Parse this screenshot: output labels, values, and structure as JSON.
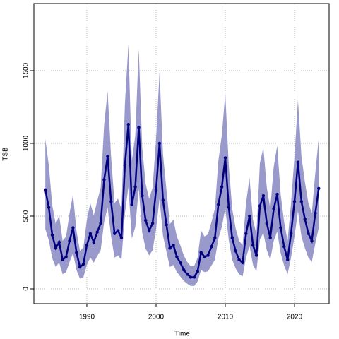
{
  "chart_data": {
    "type": "line",
    "xlabel": "Time",
    "ylabel": "TSB",
    "x": [
      1984.0,
      1984.5,
      1985.0,
      1985.5,
      1986.0,
      1986.5,
      1987.0,
      1987.5,
      1988.0,
      1988.5,
      1989.0,
      1989.5,
      1990.0,
      1990.5,
      1991.0,
      1991.5,
      1992.0,
      1992.5,
      1993.0,
      1993.5,
      1994.0,
      1994.5,
      1995.0,
      1995.5,
      1996.0,
      1996.5,
      1997.0,
      1997.5,
      1998.0,
      1998.5,
      1999.0,
      1999.5,
      2000.0,
      2000.5,
      2001.0,
      2001.5,
      2002.0,
      2002.5,
      2003.0,
      2003.5,
      2004.0,
      2004.5,
      2005.0,
      2005.5,
      2006.0,
      2006.5,
      2007.0,
      2007.5,
      2008.0,
      2008.5,
      2009.0,
      2009.5,
      2010.0,
      2010.5,
      2011.0,
      2011.5,
      2012.0,
      2012.5,
      2013.0,
      2013.5,
      2014.0,
      2014.5,
      2015.0,
      2015.5,
      2016.0,
      2016.5,
      2017.0,
      2017.5,
      2018.0,
      2018.5,
      2019.0,
      2019.5,
      2020.0,
      2020.5,
      2021.0,
      2021.5,
      2022.0,
      2022.5,
      2023.0,
      2023.5
    ],
    "values": [
      680,
      560,
      370,
      280,
      320,
      200,
      220,
      330,
      420,
      250,
      150,
      170,
      300,
      380,
      320,
      390,
      450,
      750,
      910,
      600,
      380,
      400,
      350,
      850,
      1130,
      580,
      700,
      1110,
      640,
      470,
      400,
      450,
      680,
      1000,
      610,
      440,
      280,
      300,
      220,
      180,
      130,
      100,
      80,
      80,
      120,
      250,
      220,
      230,
      290,
      350,
      580,
      700,
      900,
      560,
      350,
      260,
      200,
      180,
      380,
      500,
      300,
      230,
      570,
      640,
      450,
      350,
      550,
      650,
      420,
      290,
      200,
      380,
      600,
      870,
      600,
      480,
      380,
      330,
      520,
      690
    ],
    "lower": [
      410,
      335,
      210,
      150,
      180,
      100,
      115,
      185,
      245,
      130,
      70,
      80,
      165,
      215,
      180,
      225,
      265,
      460,
      560,
      360,
      215,
      230,
      200,
      520,
      700,
      345,
      425,
      690,
      385,
      275,
      230,
      265,
      410,
      620,
      365,
      255,
      150,
      165,
      115,
      85,
      55,
      35,
      20,
      20,
      50,
      130,
      115,
      120,
      160,
      200,
      345,
      425,
      555,
      335,
      200,
      140,
      100,
      85,
      215,
      295,
      165,
      120,
      340,
      385,
      265,
      200,
      330,
      395,
      245,
      160,
      100,
      215,
      360,
      535,
      360,
      280,
      215,
      185,
      310,
      420
    ],
    "upper": [
      1030,
      850,
      575,
      445,
      505,
      330,
      360,
      520,
      650,
      400,
      260,
      285,
      475,
      590,
      505,
      605,
      695,
      1130,
      1360,
      910,
      590,
      620,
      550,
      1270,
      1680,
      880,
      1055,
      1650,
      970,
      720,
      620,
      695,
      1030,
      1490,
      925,
      680,
      445,
      475,
      360,
      300,
      230,
      185,
      155,
      155,
      215,
      400,
      360,
      375,
      460,
      550,
      880,
      1055,
      1345,
      850,
      550,
      415,
      330,
      300,
      590,
      765,
      475,
      375,
      865,
      970,
      695,
      550,
      840,
      985,
      650,
      460,
      330,
      590,
      910,
      1300,
      910,
      735,
      590,
      520,
      795,
      1040
    ],
    "line_color": "#000080",
    "band_color": "#9999cc",
    "xlim": [
      1982.35,
      2025.0
    ],
    "ylim": [
      -102,
      1961
    ],
    "xticks": [
      1990,
      2000,
      2010,
      2020
    ],
    "yticks": [
      0,
      500,
      1000,
      1500
    ],
    "grid": true
  }
}
